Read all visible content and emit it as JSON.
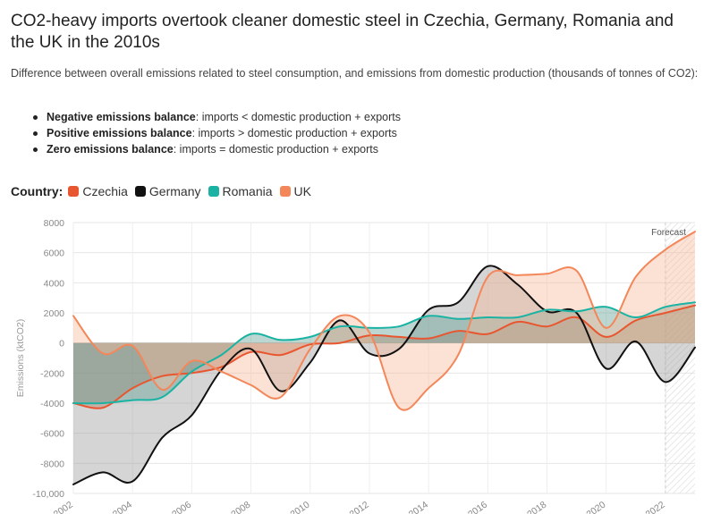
{
  "header": {
    "title": "CO2-heavy imports overtook cleaner domestic steel in Czechia, Germany, Romania and the UK in the 2010s",
    "subtitle": "Difference between overall emissions related to steel consumption, and emissions from domestic production (thousands of tonnes of CO2):"
  },
  "notes": [
    {
      "term": "Negative emissions balance",
      "text": ": imports < domestic production + exports"
    },
    {
      "term": "Positive emissions balance",
      "text": ": imports > domestic production + exports"
    },
    {
      "term": "Zero emissions balance",
      "text": ": imports = domestic production + exports"
    }
  ],
  "legend": {
    "title": "Country:",
    "items": [
      {
        "label": "Czechia",
        "color": "#e8562f"
      },
      {
        "label": "Germany",
        "color": "#111111"
      },
      {
        "label": "Romania",
        "color": "#1ab3a3"
      },
      {
        "label": "UK",
        "color": "#f3875a"
      }
    ]
  },
  "chart_data": {
    "type": "area",
    "ylabel": "Emissions (ktCO2)",
    "ylim": [
      -10000,
      8000
    ],
    "yticks": [
      8000,
      6000,
      4000,
      2000,
      0,
      -2000,
      -4000,
      -6000,
      -8000,
      -10000
    ],
    "ytick_labels": [
      "8000",
      "6000",
      "4000",
      "2000",
      "0",
      "-2000",
      "-4000",
      "-6000",
      "-8000",
      "-10,000"
    ],
    "xlim": [
      2002,
      2023
    ],
    "xticks": [
      2002,
      2004,
      2006,
      2008,
      2010,
      2012,
      2014,
      2016,
      2018,
      2020,
      2022
    ],
    "xtick_labels": [
      "2002",
      "2004",
      "2006",
      "2008",
      "2010",
      "2012",
      "2014",
      "2016",
      "2018",
      "2020",
      "2022"
    ],
    "forecast_start": 2022,
    "forecast_label": "Forecast",
    "grid": true,
    "x": [
      2002,
      2003,
      2004,
      2005,
      2006,
      2007,
      2008,
      2009,
      2010,
      2011,
      2012,
      2013,
      2014,
      2015,
      2016,
      2017,
      2018,
      2019,
      2020,
      2021,
      2022,
      2023
    ],
    "series": [
      {
        "name": "Czechia",
        "color": "#e8562f",
        "fill": "#c9673d",
        "values": [
          -4000,
          -4300,
          -3000,
          -2200,
          -2000,
          -1600,
          -600,
          -800,
          -100,
          0,
          500,
          400,
          300,
          800,
          600,
          1400,
          1100,
          1700,
          400,
          1500,
          2000,
          2500
        ]
      },
      {
        "name": "Germany",
        "color": "#111111",
        "fill": "#9a9a9a",
        "values": [
          -9400,
          -8600,
          -9200,
          -6300,
          -4800,
          -1800,
          -400,
          -3200,
          -1300,
          1500,
          -700,
          -400,
          2200,
          2700,
          5100,
          3900,
          2100,
          2000,
          -1700,
          100,
          -2600,
          -300
        ]
      },
      {
        "name": "Romania",
        "color": "#1ab3a3",
        "fill": "#5f9e92",
        "values": [
          -4000,
          -4000,
          -3800,
          -3600,
          -1900,
          -800,
          600,
          200,
          400,
          1100,
          1000,
          1100,
          1800,
          1600,
          1700,
          1700,
          2200,
          2100,
          2400,
          1700,
          2400,
          2700
        ]
      },
      {
        "name": "UK",
        "color": "#f3875a",
        "fill": "#f7b999",
        "values": [
          1800,
          -700,
          -200,
          -3100,
          -1200,
          -1900,
          -2800,
          -3600,
          -400,
          1800,
          700,
          -4300,
          -3000,
          -800,
          4400,
          4500,
          4600,
          4800,
          1000,
          4400,
          6200,
          7400
        ]
      }
    ]
  }
}
